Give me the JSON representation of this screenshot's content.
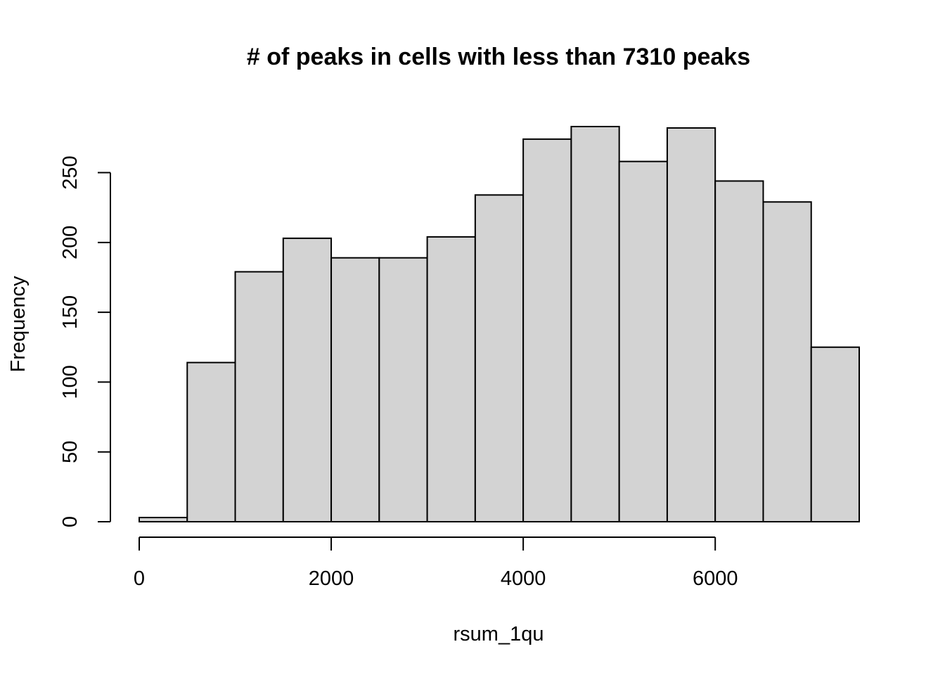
{
  "chart_data": {
    "type": "bar",
    "title": "# of peaks in cells with less than 7310 peaks",
    "xlabel": "rsum_1qu",
    "ylabel": "Frequency",
    "bin_edges": [
      0,
      500,
      1000,
      1500,
      2000,
      2500,
      3000,
      3500,
      4000,
      4500,
      5000,
      5500,
      6000,
      6500,
      7000,
      7500
    ],
    "values": [
      3,
      114,
      179,
      203,
      189,
      189,
      204,
      234,
      274,
      283,
      258,
      282,
      244,
      229,
      125
    ],
    "xlim": [
      0,
      7500
    ],
    "ylim": [
      0,
      283
    ],
    "x_ticks": [
      0,
      2000,
      4000,
      6000
    ],
    "x_tick_labels": [
      "0",
      "2000",
      "4000",
      "6000"
    ],
    "y_ticks": [
      0,
      50,
      100,
      150,
      200,
      250
    ],
    "y_tick_labels": [
      "0",
      "50",
      "100",
      "150",
      "200",
      "250"
    ],
    "grid": false,
    "colors": {
      "bar_fill": "#d3d3d3",
      "bar_stroke": "#000000"
    }
  }
}
